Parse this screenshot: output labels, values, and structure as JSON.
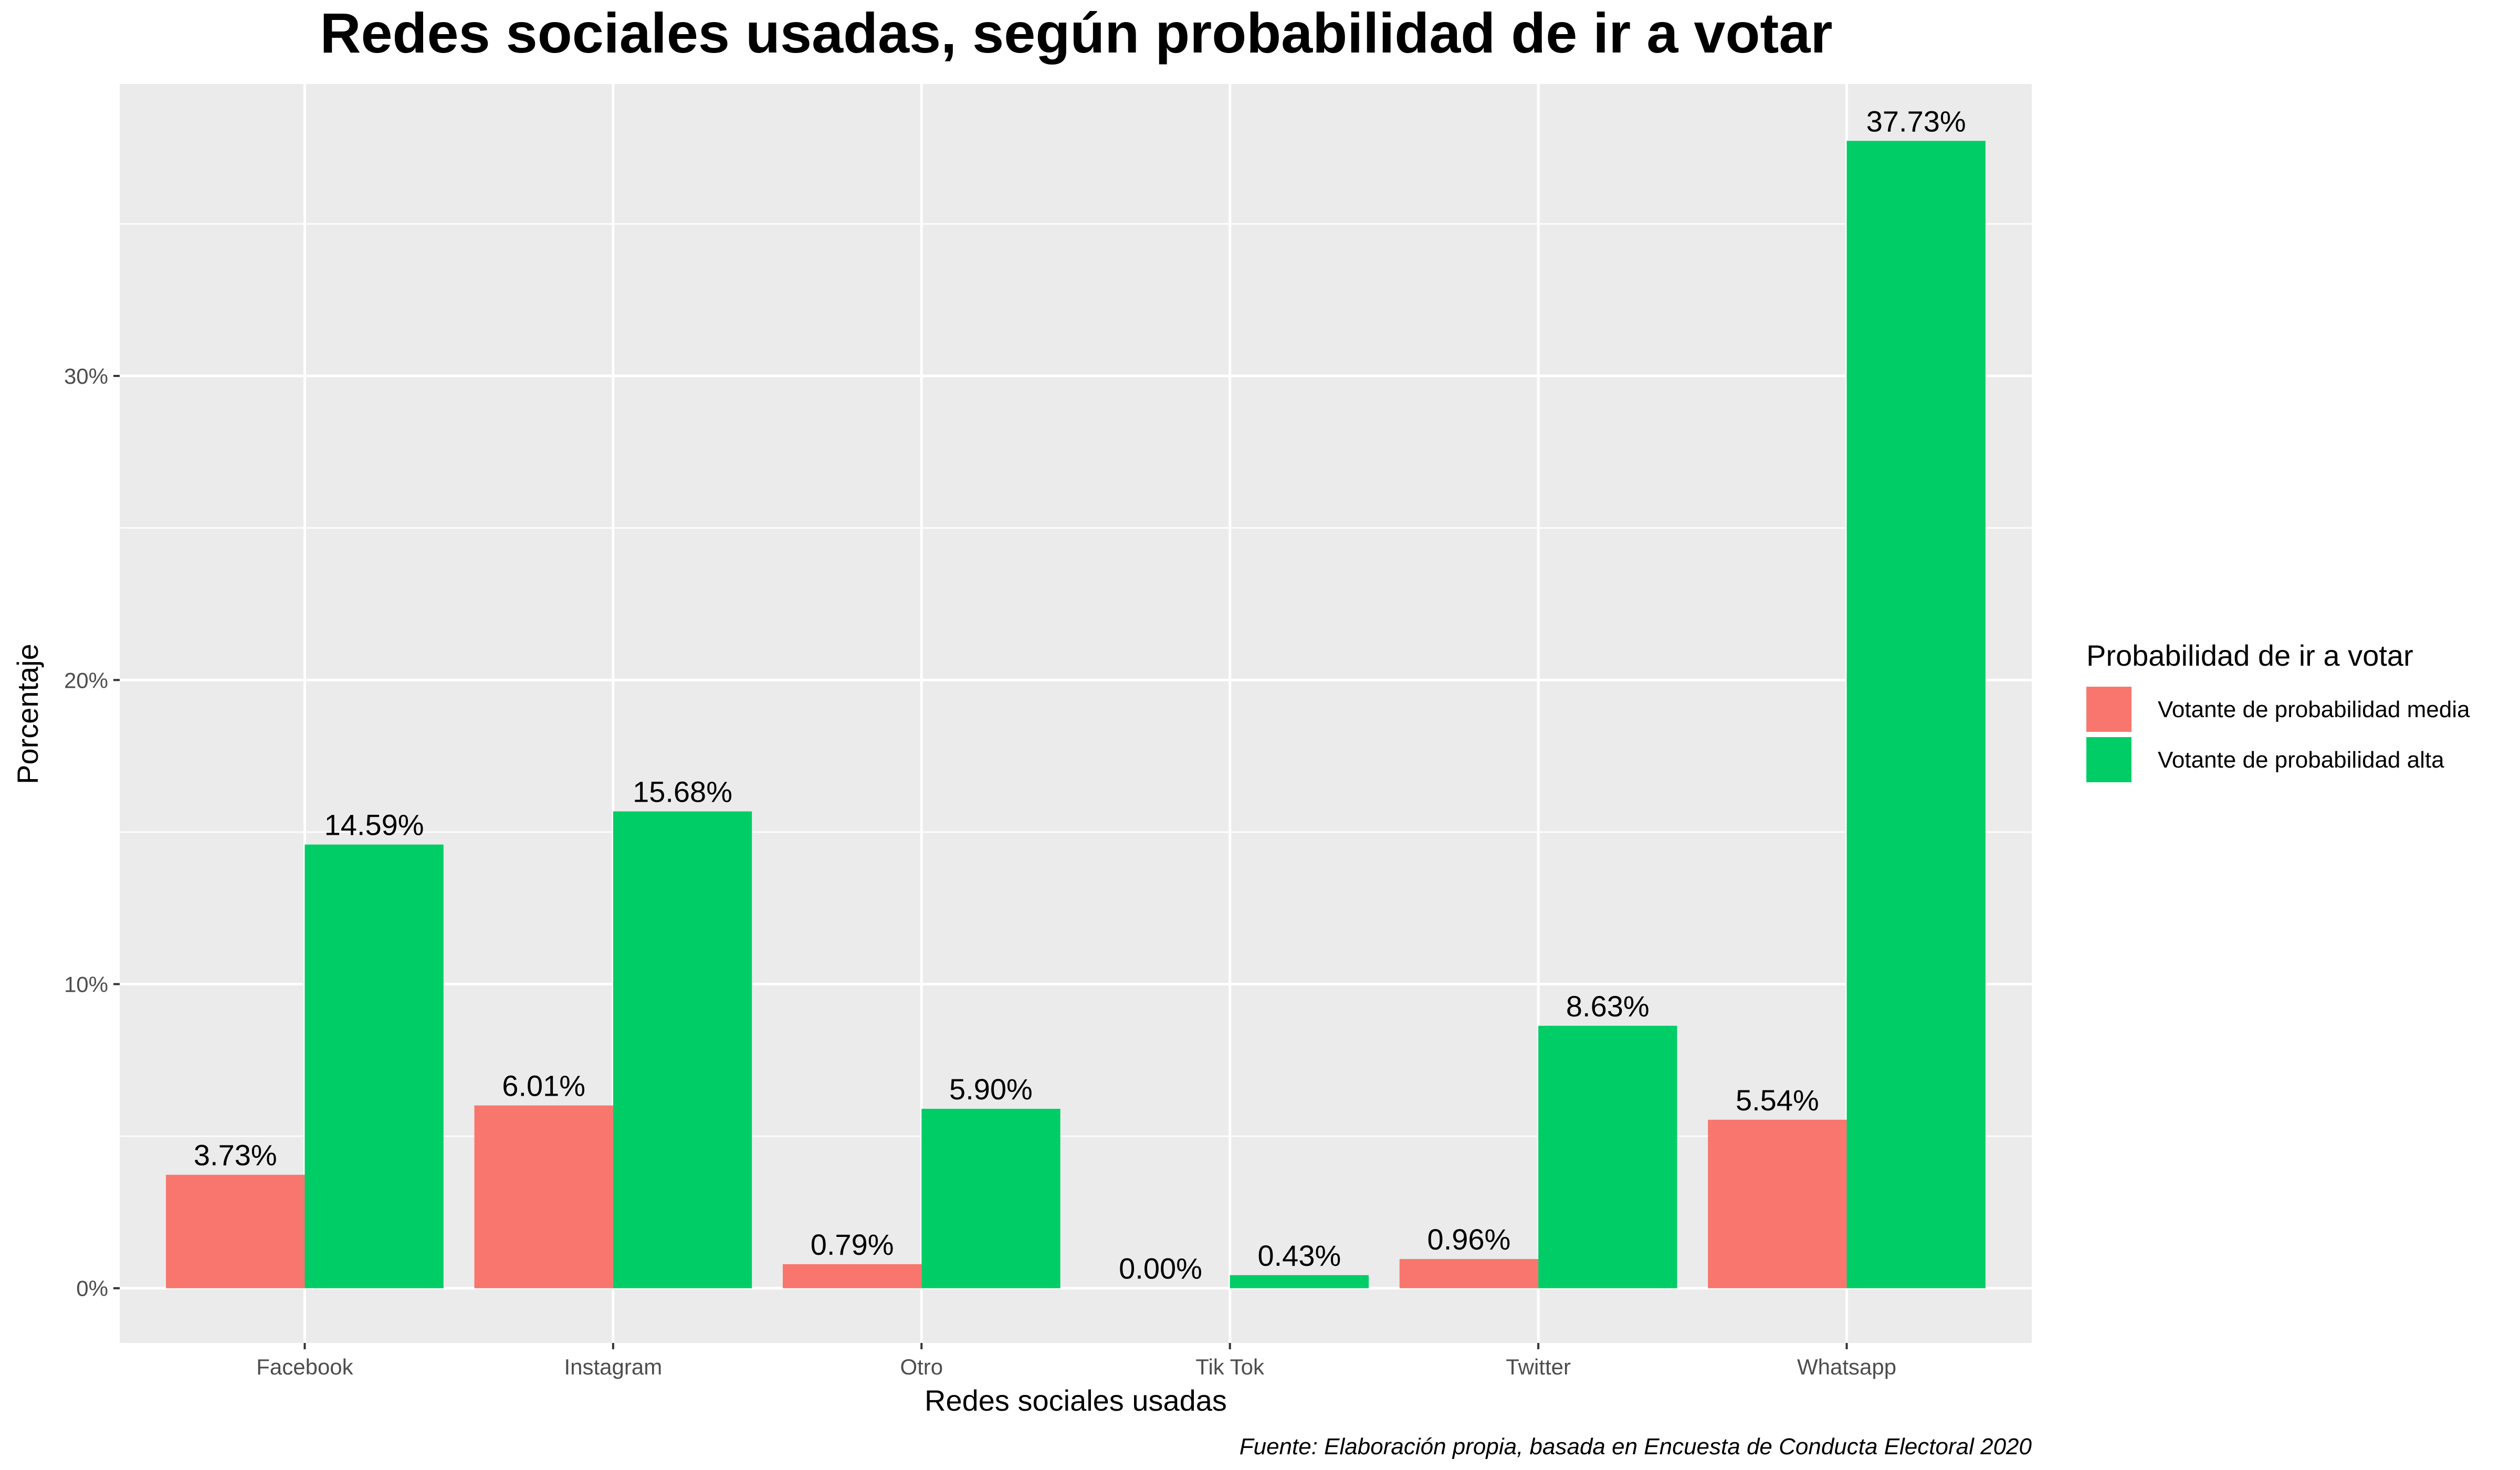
{
  "chart_data": {
    "type": "bar",
    "title": "Redes sociales usadas, según probabilidad de ir a votar",
    "xlabel": "Redes sociales usadas",
    "ylabel": "Porcentaje",
    "categories": [
      "Facebook",
      "Instagram",
      "Otro",
      "Tik Tok",
      "Twitter",
      "Whatsapp"
    ],
    "series": [
      {
        "name": "Votante de probabilidad media",
        "color": "#F8766D",
        "values": [
          3.73,
          6.01,
          0.79,
          0.0,
          0.96,
          5.54
        ],
        "labels": [
          "3.73%",
          "6.01%",
          "0.79%",
          "0.00%",
          "0.96%",
          "5.54%"
        ]
      },
      {
        "name": "Votante de probabilidad alta",
        "color": "#00CD66",
        "values": [
          14.59,
          15.68,
          5.9,
          0.43,
          8.63,
          37.73
        ],
        "labels": [
          "14.59%",
          "15.68%",
          "5.90%",
          "0.43%",
          "8.63%",
          "37.73%"
        ]
      }
    ],
    "ylim": [
      -1.8,
      39.6
    ],
    "yticks": [
      0,
      10,
      20,
      30
    ],
    "ytick_labels": [
      "0%",
      "10%",
      "20%",
      "30%"
    ],
    "grid": true,
    "legend": {
      "title": "Probabilidad de ir a votar",
      "position": "right"
    },
    "caption": "Fuente: Elaboración propia, basada en Encuesta de Conducta Electoral 2020",
    "panel_background": "#EBEBEB"
  }
}
